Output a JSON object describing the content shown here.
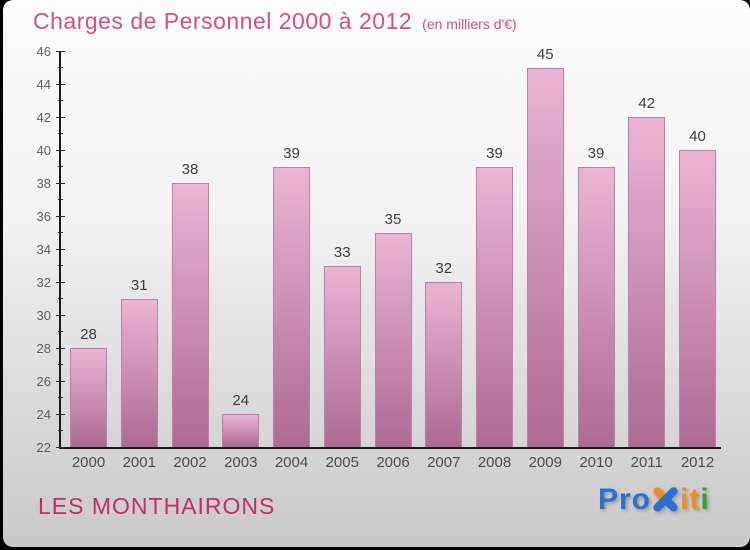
{
  "title": "Charges de Personnel 2000 à 2012",
  "subtitle": "(en milliers d'€)",
  "footer": {
    "org_name": "LES MONTHAIRONS",
    "logo_parts": {
      "pro": "Pro",
      "i1": "i",
      "t": "t",
      "i2": "i"
    }
  },
  "colors": {
    "title": "#d45178",
    "org_name": "#c02f68",
    "bar_top": "#eab5d3",
    "bar_bottom": "#ac6a90",
    "bar_border": "#bd7fa5",
    "logo_blue": "#2b6fd1",
    "logo_orange": "#f28c1e",
    "logo_green": "#33a532"
  },
  "chart_data": {
    "type": "bar",
    "title": "Charges de Personnel 2000 à 2012",
    "subtitle": "(en milliers d'€)",
    "xlabel": "",
    "ylabel": "",
    "unit": "milliers d'€",
    "categories": [
      "2000",
      "2001",
      "2002",
      "2003",
      "2004",
      "2005",
      "2006",
      "2007",
      "2008",
      "2009",
      "2010",
      "2011",
      "2012"
    ],
    "values": [
      28,
      31,
      38,
      24,
      39,
      33,
      35,
      32,
      39,
      45,
      39,
      42,
      40
    ],
    "ylim": [
      22,
      46
    ],
    "ytick_major_step": 2,
    "ytick_minor_step": 1,
    "grid": false,
    "bar_labels": true,
    "legend": null
  }
}
